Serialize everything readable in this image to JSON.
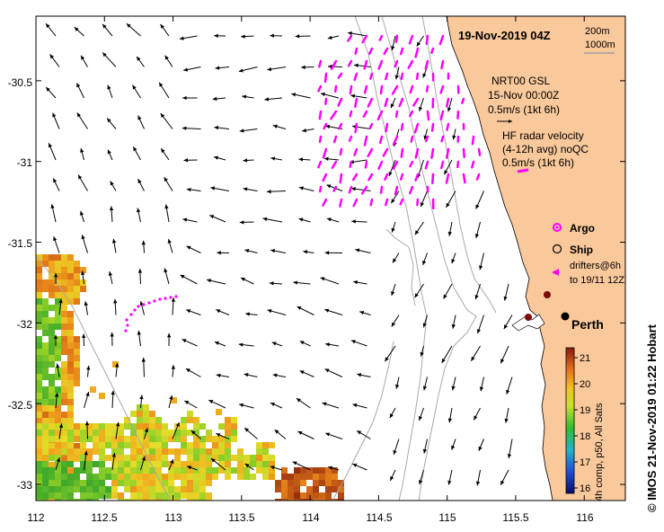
{
  "title": "19-Nov-2019 04Z",
  "isobaths": [
    "200m",
    "1000m"
  ],
  "model": {
    "name": "NRT00 GSL",
    "date": "15-Nov 00:00Z",
    "scale": "0.5m/s (1kt 6h)"
  },
  "hf_radar": {
    "line1": "HF radar velocity",
    "line2": "(4-12h avg) noQC",
    "scale": "0.5m/s (1kt 6h)"
  },
  "legend": {
    "argo": "Argo",
    "ship": "Ship",
    "drifters_line1": "drifters@6h",
    "drifters_line2": "to 19/11 12Z"
  },
  "city": "Perth",
  "colorbar": {
    "ticks": [
      "21",
      "20",
      "19",
      "18",
      "17",
      "16"
    ],
    "label": "4h comp, p50, All Sats"
  },
  "credit": "© IMOS 21-Nov-2019 01:22 Hobart",
  "axes": {
    "lon_ticks": [
      "112",
      "112.5",
      "113",
      "113.5",
      "114",
      "114.5",
      "115",
      "115.5",
      "116"
    ],
    "lat_ticks": [
      "-30.5",
      "-31",
      "-31.5",
      "-32",
      "-32.5",
      "-33"
    ],
    "lon_range": [
      112,
      116.3
    ],
    "lat_range": [
      -33.1,
      -30.1
    ]
  },
  "colors": {
    "land": "#f9c89b",
    "hf_arrows": "#ff00ff",
    "model_arrows": "#000000",
    "isobath": "#a0a0a0"
  }
}
